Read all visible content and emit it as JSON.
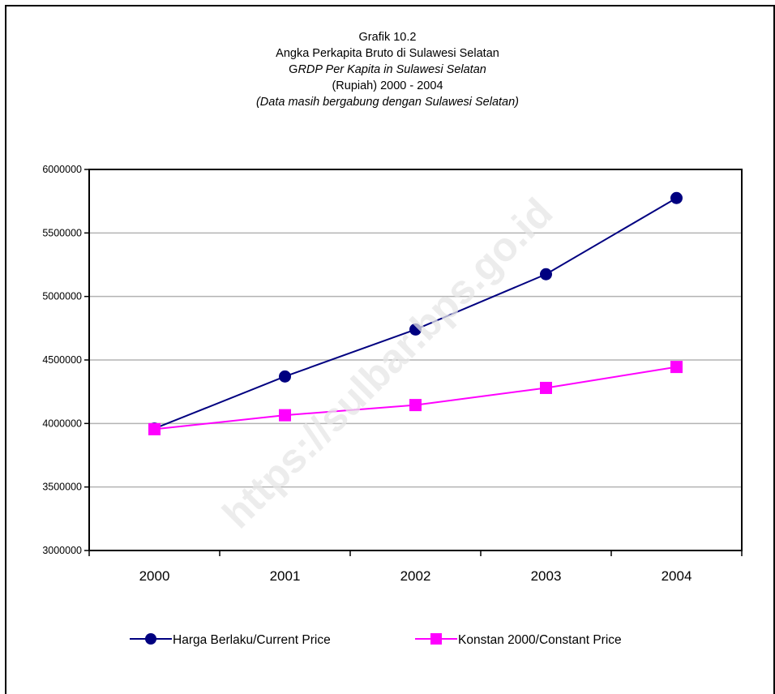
{
  "title": {
    "line1": "Grafik 10.2",
    "line2": "Angka Perkapita Bruto di Sulawesi Selatan",
    "line3_prefix": "G",
    "line3_italic": "RDP Per Kapita in Sulawesi Selatan",
    "line4": "(Rupiah) 2000 - 2004",
    "line5": "(Data masih bergabung dengan Sulawesi Selatan)"
  },
  "watermark": "https://sulbar.bps.go.id",
  "chart_data": {
    "type": "line",
    "categories": [
      "2000",
      "2001",
      "2002",
      "2003",
      "2004"
    ],
    "ylim": [
      3000000,
      6000000
    ],
    "yticks": [
      3000000,
      3500000,
      4000000,
      4500000,
      5000000,
      5500000,
      6000000
    ],
    "ytick_labels": [
      "3000000",
      "3500000",
      "4000000",
      "4500000",
      "5000000",
      "5500000",
      "6000000"
    ],
    "grid": true,
    "legend_position": "bottom",
    "series": [
      {
        "name": "Harga Berlaku/Current Price",
        "values": [
          3960000,
          4370000,
          4740000,
          5175000,
          5775000
        ],
        "color": "#000080",
        "marker": "circle"
      },
      {
        "name": "Konstan 2000/Constant Price",
        "values": [
          3955000,
          4065000,
          4145000,
          4280000,
          4445000
        ],
        "color": "#FF00FF",
        "marker": "square"
      }
    ]
  }
}
